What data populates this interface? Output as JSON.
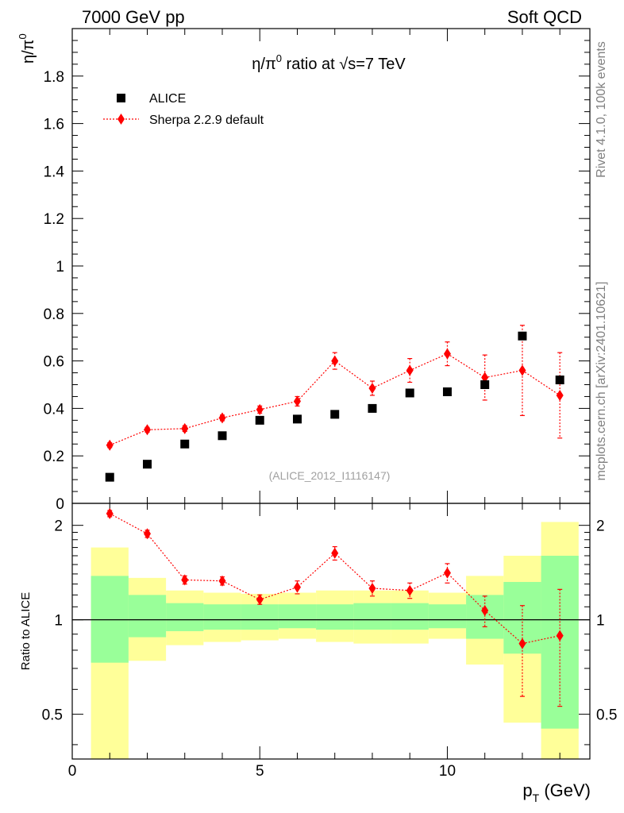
{
  "header": {
    "left": "7000 GeV pp",
    "right": "Soft QCD"
  },
  "side_labels": {
    "rivet": "Rivet 4.1.0,  100k events",
    "mcplots": "mcplots.cern.ch [arXiv:2401.10621]"
  },
  "colors": {
    "data": "#000000",
    "mc": "#ff0000",
    "band_inner": "#99ff99",
    "band_outer": "#ffff99"
  },
  "chart_data": [
    {
      "type": "scatter",
      "title_prefix": "η/π",
      "title_sup": "0",
      "title_suffix": " ratio at ",
      "title_sqrt": "√s",
      "title_end": "=7 TeV",
      "ylabel_main": "η/π",
      "ylabel_sup": "0",
      "analysis_id": "(ALICE_2012_I1116147)",
      "ylim": [
        0,
        2.0
      ],
      "xlim": [
        0,
        13.8
      ],
      "yticks": [
        {
          "v": 0,
          "label": "0"
        },
        {
          "v": 0.2,
          "label": "0.2"
        },
        {
          "v": 0.4,
          "label": "0.4"
        },
        {
          "v": 0.6,
          "label": "0.6"
        },
        {
          "v": 0.8,
          "label": "0.8"
        },
        {
          "v": 1.0,
          "label": "1"
        },
        {
          "v": 1.2,
          "label": "1.2"
        },
        {
          "v": 1.4,
          "label": "1.4"
        },
        {
          "v": 1.6,
          "label": "1.6"
        },
        {
          "v": 1.8,
          "label": "1.8"
        }
      ],
      "legend": [
        {
          "name": "ALICE",
          "marker": "square"
        },
        {
          "name": "Sherpa 2.2.9 default",
          "marker": "diamond"
        }
      ],
      "x": [
        1,
        2,
        3,
        4,
        5,
        6,
        7,
        8,
        9,
        10,
        11,
        12,
        13
      ],
      "bin_edges": [
        0.5,
        1.5,
        2.5,
        3.5,
        4.5,
        5.5,
        6.5,
        7.5,
        8.5,
        9.5,
        10.5,
        11.5,
        12.5,
        13.5
      ],
      "series": [
        {
          "name": "ALICE",
          "values": [
            0.11,
            0.165,
            0.25,
            0.285,
            0.35,
            0.355,
            0.375,
            0.4,
            0.465,
            0.47,
            0.5,
            0.705,
            0.52
          ]
        },
        {
          "name": "Sherpa 2.2.9 default",
          "values": [
            0.245,
            0.31,
            0.315,
            0.36,
            0.395,
            0.43,
            0.6,
            0.485,
            0.56,
            0.63,
            0.53,
            0.56,
            0.455
          ],
          "errors": [
            0.01,
            0.01,
            0.012,
            0.012,
            0.015,
            0.02,
            0.035,
            0.03,
            0.05,
            0.05,
            0.095,
            0.19,
            0.18
          ]
        }
      ]
    },
    {
      "type": "line",
      "ylabel": "Ratio to ALICE",
      "ylim": [
        0.36,
        2.35
      ],
      "yscale": "log",
      "xlim": [
        0,
        13.8
      ],
      "yticks": [
        {
          "v": 0.5,
          "label": "0.5"
        },
        {
          "v": 1,
          "label": "1"
        },
        {
          "v": 2,
          "label": "2"
        }
      ],
      "xticks": [
        {
          "v": 0,
          "label": "0"
        },
        {
          "v": 5,
          "label": "5"
        },
        {
          "v": 10,
          "label": "10"
        }
      ],
      "xlabel_main": "p",
      "xlabel_sub": "T",
      "xlabel_unit": " (GeV)",
      "bands": {
        "inner": [
          [
            0.73,
            1.38
          ],
          [
            0.88,
            1.2
          ],
          [
            0.92,
            1.13
          ],
          [
            0.93,
            1.12
          ],
          [
            0.93,
            1.12
          ],
          [
            0.94,
            1.12
          ],
          [
            0.93,
            1.12
          ],
          [
            0.93,
            1.13
          ],
          [
            0.93,
            1.13
          ],
          [
            0.94,
            1.12
          ],
          [
            0.87,
            1.2
          ],
          [
            0.78,
            1.32
          ],
          [
            0.45,
            1.6
          ]
        ],
        "outer": [
          [
            0.36,
            1.7
          ],
          [
            0.74,
            1.36
          ],
          [
            0.83,
            1.24
          ],
          [
            0.85,
            1.22
          ],
          [
            0.86,
            1.21
          ],
          [
            0.87,
            1.22
          ],
          [
            0.85,
            1.24
          ],
          [
            0.84,
            1.24
          ],
          [
            0.84,
            1.24
          ],
          [
            0.87,
            1.22
          ],
          [
            0.72,
            1.38
          ],
          [
            0.47,
            1.6
          ],
          [
            0.36,
            2.05
          ]
        ]
      },
      "ratio": {
        "name": "Sherpa 2.2.9 default",
        "values": [
          2.18,
          1.88,
          1.34,
          1.33,
          1.16,
          1.27,
          1.63,
          1.26,
          1.24,
          1.41,
          1.07,
          0.84,
          0.89
        ],
        "errors": [
          0.05,
          0.05,
          0.04,
          0.04,
          0.04,
          0.06,
          0.08,
          0.07,
          0.07,
          0.1,
          0.12,
          0.27,
          0.36
        ]
      }
    }
  ]
}
